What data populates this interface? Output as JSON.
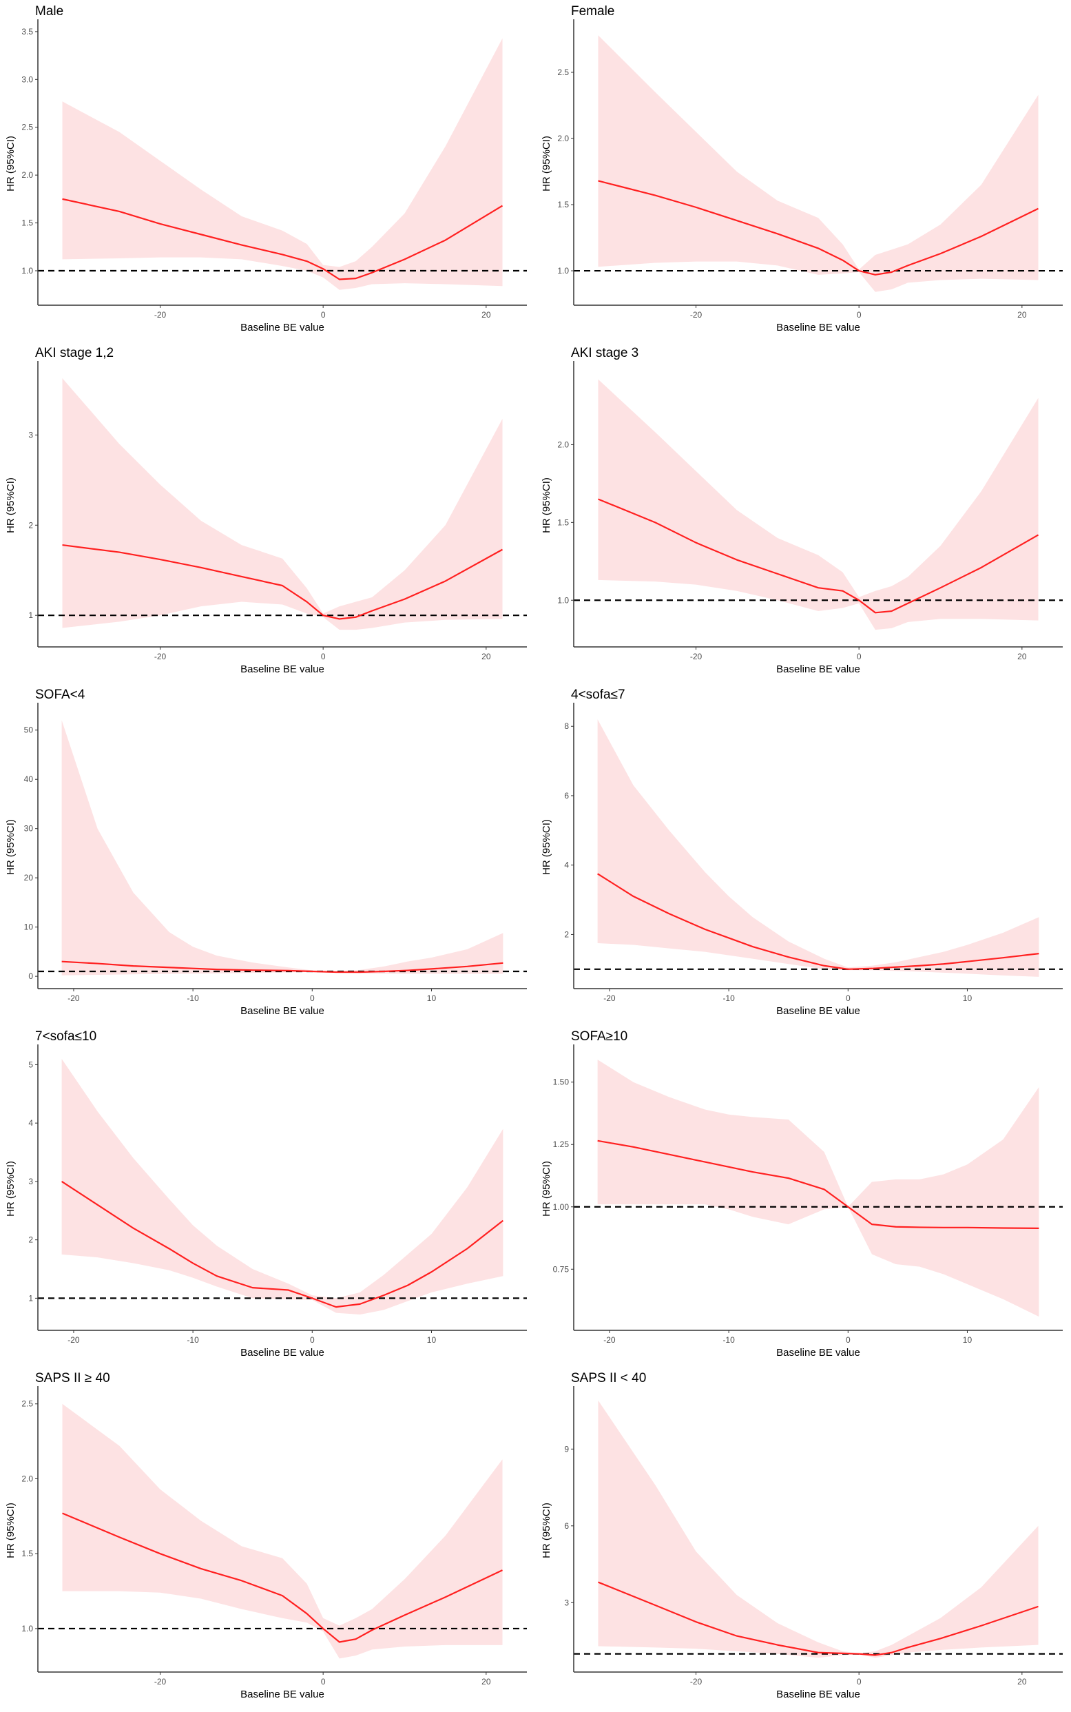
{
  "chart_data": [
    {
      "type": "area",
      "title": "Male",
      "xlabel": "Baseline BE value",
      "ylabel": "HR (95%CI)",
      "xlim": [
        -35,
        25
      ],
      "ylim": [
        0.64,
        3.6
      ],
      "xticks": [
        -20,
        0,
        20
      ],
      "yticks": [
        "1.0",
        "1.5",
        "2.0",
        "2.5",
        "3.0",
        "3.5"
      ],
      "reference_line": 1,
      "x": [
        -32,
        -25,
        -20,
        -15,
        -10,
        -5,
        -2,
        0,
        2,
        4,
        6,
        10,
        15,
        22
      ],
      "hr": [
        1.75,
        1.62,
        1.49,
        1.38,
        1.27,
        1.17,
        1.1,
        1.02,
        0.91,
        0.92,
        0.98,
        1.12,
        1.32,
        1.68
      ],
      "lower": [
        1.12,
        1.13,
        1.14,
        1.14,
        1.12,
        1.05,
        1.0,
        0.93,
        0.8,
        0.82,
        0.86,
        0.87,
        0.86,
        0.84
      ],
      "upper": [
        2.77,
        2.45,
        2.15,
        1.85,
        1.57,
        1.42,
        1.28,
        1.06,
        1.04,
        1.1,
        1.25,
        1.6,
        2.3,
        3.43
      ]
    },
    {
      "type": "area",
      "title": "Female",
      "xlabel": "Baseline BE value",
      "ylabel": "HR (95%CI)",
      "xlim": [
        -35,
        25
      ],
      "ylim": [
        0.74,
        2.88
      ],
      "xticks": [
        -20,
        0,
        20
      ],
      "yticks": [
        "1.0",
        "1.5",
        "2.0",
        "2.5"
      ],
      "reference_line": 1,
      "x": [
        -32,
        -25,
        -20,
        -15,
        -10,
        -5,
        -2,
        0,
        2,
        4,
        6,
        10,
        15,
        22
      ],
      "hr": [
        1.68,
        1.57,
        1.48,
        1.38,
        1.28,
        1.17,
        1.08,
        1.0,
        0.97,
        0.99,
        1.04,
        1.13,
        1.26,
        1.47
      ],
      "lower": [
        1.03,
        1.06,
        1.07,
        1.07,
        1.04,
        0.97,
        0.98,
        0.99,
        0.84,
        0.86,
        0.91,
        0.93,
        0.94,
        0.93
      ],
      "upper": [
        2.78,
        2.35,
        2.05,
        1.75,
        1.53,
        1.4,
        1.2,
        1.01,
        1.12,
        1.16,
        1.2,
        1.35,
        1.65,
        2.33
      ]
    },
    {
      "type": "area",
      "title": "AKI stage 1,2",
      "xlabel": "Baseline BE value",
      "ylabel": "HR (95%CI)",
      "xlim": [
        -35,
        25
      ],
      "ylim": [
        0.65,
        3.79
      ],
      "xticks": [
        -20,
        0,
        20
      ],
      "yticks": [
        "1",
        "2",
        "3"
      ],
      "reference_line": 1,
      "x": [
        -32,
        -25,
        -20,
        -15,
        -10,
        -5,
        -2,
        0,
        2,
        4,
        6,
        10,
        15,
        22
      ],
      "hr": [
        1.78,
        1.7,
        1.62,
        1.53,
        1.43,
        1.33,
        1.15,
        1.0,
        0.96,
        0.98,
        1.05,
        1.18,
        1.38,
        1.73
      ],
      "lower": [
        0.86,
        0.93,
        1.0,
        1.1,
        1.15,
        1.12,
        1.02,
        0.98,
        0.84,
        0.84,
        0.86,
        0.92,
        0.95,
        0.96
      ],
      "upper": [
        3.63,
        2.9,
        2.45,
        2.05,
        1.78,
        1.63,
        1.3,
        1.02,
        1.1,
        1.15,
        1.2,
        1.5,
        2.0,
        3.18
      ]
    },
    {
      "type": "area",
      "title": "AKI stage 3",
      "xlabel": "Baseline BE value",
      "ylabel": "HR (95%CI)",
      "xlim": [
        -35,
        25
      ],
      "ylim": [
        0.7,
        2.52
      ],
      "xticks": [
        -20,
        0,
        20
      ],
      "yticks": [
        "1.0",
        "1.5",
        "2.0"
      ],
      "reference_line": 1,
      "x": [
        -32,
        -25,
        -20,
        -15,
        -10,
        -5,
        -2,
        0,
        2,
        4,
        6,
        10,
        15,
        22
      ],
      "hr": [
        1.65,
        1.5,
        1.37,
        1.26,
        1.17,
        1.08,
        1.06,
        1.0,
        0.92,
        0.93,
        0.98,
        1.08,
        1.21,
        1.42
      ],
      "lower": [
        1.13,
        1.12,
        1.1,
        1.06,
        1.0,
        0.93,
        0.95,
        0.98,
        0.81,
        0.82,
        0.86,
        0.88,
        0.88,
        0.87
      ],
      "upper": [
        2.42,
        2.08,
        1.83,
        1.58,
        1.4,
        1.29,
        1.18,
        1.02,
        1.06,
        1.09,
        1.15,
        1.35,
        1.7,
        2.3
      ]
    },
    {
      "type": "area",
      "title": "SOFA<4",
      "xlabel": "Baseline BE value",
      "ylabel": "HR (95%CI)",
      "xlim": [
        -23,
        18
      ],
      "ylim": [
        -2.5,
        55
      ],
      "xticks": [
        -20,
        -10,
        0,
        10
      ],
      "yticks": [
        "0",
        "10",
        "20",
        "30",
        "40",
        "50"
      ],
      "reference_line": 1,
      "x": [
        -21,
        -18,
        -15,
        -12,
        -10,
        -8,
        -5,
        -2,
        0,
        2,
        4,
        6,
        8,
        10,
        13,
        16
      ],
      "hr": [
        3.0,
        2.6,
        2.1,
        1.8,
        1.6,
        1.4,
        1.25,
        1.15,
        1.0,
        0.85,
        0.85,
        1.0,
        1.2,
        1.5,
        2.0,
        2.7
      ],
      "lower": [
        0.2,
        0.3,
        0.4,
        0.5,
        0.55,
        0.6,
        0.7,
        0.8,
        0.85,
        0.7,
        0.6,
        0.55,
        0.5,
        0.5,
        0.5,
        0.5
      ],
      "upper": [
        52,
        30,
        17,
        9,
        6,
        4.2,
        2.8,
        1.8,
        1.2,
        1.1,
        1.3,
        2,
        3,
        3.8,
        5.5,
        8.8
      ]
    },
    {
      "type": "area",
      "title": "4<sofa≤7",
      "xlabel": "Baseline BE value",
      "ylabel": "HR (95%CI)",
      "xlim": [
        -23,
        18
      ],
      "ylim": [
        0.44,
        8.6
      ],
      "xticks": [
        -20,
        -10,
        0,
        10
      ],
      "yticks": [
        "2",
        "4",
        "6",
        "8"
      ],
      "reference_line": 1,
      "x": [
        -21,
        -18,
        -15,
        -12,
        -10,
        -8,
        -5,
        -2,
        0,
        2,
        4,
        6,
        8,
        10,
        13,
        16
      ],
      "hr": [
        3.75,
        3.1,
        2.6,
        2.15,
        1.9,
        1.65,
        1.35,
        1.1,
        1.0,
        1.02,
        1.06,
        1.1,
        1.15,
        1.22,
        1.33,
        1.45
      ],
      "lower": [
        1.75,
        1.7,
        1.6,
        1.5,
        1.4,
        1.3,
        1.15,
        1.0,
        0.97,
        0.97,
        0.95,
        0.93,
        0.9,
        0.87,
        0.82,
        0.78
      ],
      "upper": [
        8.2,
        6.3,
        5.0,
        3.8,
        3.1,
        2.5,
        1.8,
        1.3,
        1.05,
        1.1,
        1.2,
        1.35,
        1.5,
        1.7,
        2.05,
        2.5
      ]
    },
    {
      "type": "area",
      "title": "7<sofa≤10",
      "xlabel": "Baseline BE value",
      "ylabel": "HR (95%CI)",
      "xlim": [
        -23,
        18
      ],
      "ylim": [
        0.45,
        5.3
      ],
      "xticks": [
        -20,
        -10,
        0,
        10
      ],
      "yticks": [
        "1",
        "2",
        "3",
        "4",
        "5"
      ],
      "reference_line": 1,
      "x": [
        -21,
        -18,
        -15,
        -12,
        -10,
        -8,
        -5,
        -2,
        0,
        2,
        4,
        6,
        8,
        10,
        13,
        16
      ],
      "hr": [
        3.0,
        2.6,
        2.2,
        1.85,
        1.6,
        1.38,
        1.18,
        1.14,
        1.0,
        0.85,
        0.9,
        1.05,
        1.22,
        1.45,
        1.85,
        2.33
      ],
      "lower": [
        1.75,
        1.7,
        1.6,
        1.48,
        1.35,
        1.2,
        1.0,
        0.98,
        0.97,
        0.75,
        0.72,
        0.8,
        0.95,
        1.1,
        1.25,
        1.38
      ],
      "upper": [
        5.1,
        4.2,
        3.4,
        2.7,
        2.25,
        1.9,
        1.5,
        1.25,
        1.05,
        1.0,
        1.1,
        1.4,
        1.75,
        2.1,
        2.9,
        3.9
      ]
    },
    {
      "type": "area",
      "title": "SOFA≥10",
      "xlabel": "Baseline BE value",
      "ylabel": "HR (95%CI)",
      "xlim": [
        -23,
        18
      ],
      "ylim": [
        0.505,
        1.64
      ],
      "xticks": [
        -20,
        -10,
        0,
        10
      ],
      "yticks": [
        "0.75",
        "1.00",
        "1.25",
        "1.50"
      ],
      "reference_line": 1,
      "x": [
        -21,
        -18,
        -15,
        -12,
        -10,
        -8,
        -5,
        -2,
        0,
        2,
        4,
        6,
        8,
        10,
        13,
        16
      ],
      "hr": [
        1.265,
        1.24,
        1.21,
        1.18,
        1.16,
        1.14,
        1.115,
        1.07,
        1.0,
        0.93,
        0.92,
        0.918,
        0.917,
        0.917,
        0.915,
        0.914
      ],
      "lower": [
        1.01,
        1.01,
        1.01,
        1.01,
        0.99,
        0.96,
        0.93,
        0.99,
        1.0,
        0.81,
        0.77,
        0.76,
        0.73,
        0.69,
        0.63,
        0.56
      ],
      "upper": [
        1.59,
        1.5,
        1.44,
        1.39,
        1.37,
        1.36,
        1.35,
        1.22,
        1.0,
        1.1,
        1.11,
        1.11,
        1.13,
        1.17,
        1.27,
        1.48
      ]
    },
    {
      "type": "area",
      "title": "SAPS II ≥ 40",
      "xlabel": "Baseline BE value",
      "ylabel": "HR (95%CI)",
      "xlim": [
        -35,
        25
      ],
      "ylim": [
        0.71,
        2.6
      ],
      "xticks": [
        -20,
        0,
        20
      ],
      "yticks": [
        "1.0",
        "1.5",
        "2.0",
        "2.5"
      ],
      "reference_line": 1,
      "x": [
        -32,
        -25,
        -20,
        -15,
        -10,
        -5,
        -2,
        0,
        2,
        4,
        6,
        10,
        15,
        22
      ],
      "hr": [
        1.77,
        1.61,
        1.5,
        1.4,
        1.32,
        1.22,
        1.1,
        1.0,
        0.91,
        0.93,
        0.99,
        1.09,
        1.21,
        1.39
      ],
      "lower": [
        1.25,
        1.25,
        1.24,
        1.2,
        1.13,
        1.07,
        1.04,
        0.98,
        0.8,
        0.82,
        0.86,
        0.88,
        0.89,
        0.89
      ],
      "upper": [
        2.5,
        2.22,
        1.93,
        1.72,
        1.55,
        1.47,
        1.3,
        1.07,
        1.02,
        1.07,
        1.13,
        1.33,
        1.62,
        2.13
      ]
    },
    {
      "type": "area",
      "title": "SAPS II < 40",
      "xlabel": "Baseline BE value",
      "ylabel": "HR (95%CI)",
      "xlim": [
        -35,
        25
      ],
      "ylim": [
        0.29,
        11.35
      ],
      "xticks": [
        -20,
        0,
        20
      ],
      "yticks": [
        "3",
        "6",
        "9"
      ],
      "reference_line": 1,
      "x": [
        -32,
        -25,
        -20,
        -15,
        -10,
        -5,
        -2,
        0,
        2,
        4,
        6,
        10,
        15,
        22
      ],
      "hr": [
        3.8,
        2.9,
        2.25,
        1.7,
        1.35,
        1.05,
        1.02,
        1.0,
        0.95,
        1.05,
        1.25,
        1.6,
        2.1,
        2.85
      ],
      "lower": [
        1.3,
        1.25,
        1.2,
        1.1,
        1.0,
        0.85,
        0.95,
        0.98,
        0.85,
        0.95,
        1.05,
        1.15,
        1.25,
        1.35
      ],
      "upper": [
        10.9,
        7.6,
        5.0,
        3.3,
        2.2,
        1.45,
        1.1,
        1.02,
        1.1,
        1.35,
        1.7,
        2.4,
        3.6,
        6.0
      ]
    }
  ],
  "colors": {
    "line": "#ff2020",
    "band": "#fde2e3",
    "reference": "#000000",
    "axis": "#333333"
  }
}
